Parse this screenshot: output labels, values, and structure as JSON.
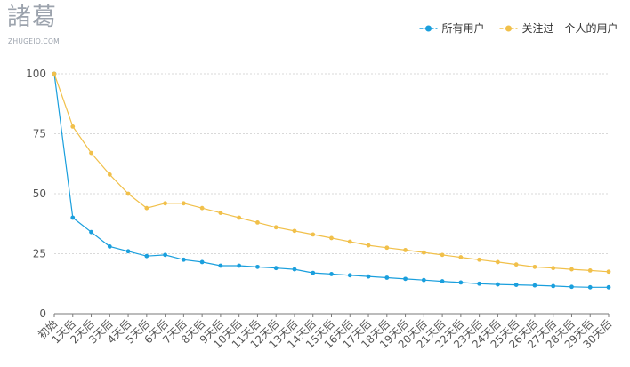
{
  "logo": {
    "main": "諸葛",
    "sub": "ZHUGEIO.COM"
  },
  "chart_data": {
    "type": "line",
    "title": "",
    "xlabel": "",
    "ylabel": "",
    "categories": [
      "初始",
      "1天后",
      "2天后",
      "3天后",
      "4天后",
      "5天后",
      "6天后",
      "7天后",
      "8天后",
      "9天后",
      "10天后",
      "11天后",
      "12天后",
      "13天后",
      "14天后",
      "15天后",
      "16天后",
      "17天后",
      "18天后",
      "19天后",
      "20天后",
      "21天后",
      "22天后",
      "23天后",
      "24天后",
      "25天后",
      "26天后",
      "27天后",
      "28天后",
      "29天后",
      "30天后"
    ],
    "yticks": [
      0,
      25,
      50,
      75,
      100
    ],
    "ylim": [
      0,
      100
    ],
    "grid": true,
    "legend_position": "top-right",
    "series": [
      {
        "name": "所有用户",
        "color": "#1a9fdd",
        "values": [
          100,
          40,
          34,
          28,
          26,
          24,
          24.5,
          22.5,
          21.5,
          20,
          20,
          19.5,
          19,
          18.5,
          17,
          16.5,
          16,
          15.5,
          15,
          14.5,
          14,
          13.5,
          13,
          12.5,
          12.2,
          12,
          11.8,
          11.5,
          11.2,
          11,
          11
        ]
      },
      {
        "name": "关注过一个人的用户",
        "color": "#f1c04a",
        "values": [
          100,
          78,
          67,
          58,
          50,
          44,
          46,
          46,
          44,
          42,
          40,
          38,
          36,
          34.5,
          33,
          31.5,
          30,
          28.5,
          27.5,
          26.5,
          25.5,
          24.5,
          23.5,
          22.5,
          21.5,
          20.5,
          19.5,
          19,
          18.5,
          18,
          17.5
        ]
      }
    ]
  }
}
